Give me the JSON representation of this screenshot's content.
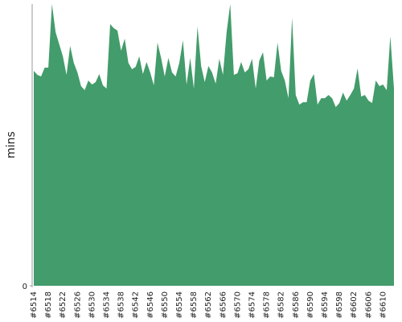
{
  "chart_data": {
    "type": "area",
    "y_label": "mins",
    "color": "#439c6b",
    "categories": [
      "#6514",
      null,
      null,
      null,
      "#6518",
      null,
      null,
      null,
      "#6522",
      null,
      null,
      null,
      "#6526",
      null,
      null,
      null,
      "#6530",
      null,
      null,
      null,
      "#6534",
      null,
      null,
      null,
      "#6538",
      null,
      null,
      null,
      "#6542",
      null,
      null,
      null,
      "#6546",
      null,
      null,
      null,
      "#6550",
      null,
      null,
      null,
      "#6554",
      null,
      null,
      null,
      "#6558",
      null,
      null,
      null,
      "#6562",
      null,
      null,
      null,
      "#6566",
      null,
      null,
      null,
      "#6570",
      null,
      null,
      null,
      "#6574",
      null,
      null,
      null,
      "#6578",
      null,
      null,
      null,
      "#6582",
      null,
      null,
      null,
      "#6586",
      null,
      null,
      null,
      "#6590",
      null,
      null,
      null,
      "#6594",
      null,
      null,
      null,
      "#6598",
      null,
      null,
      null,
      "#6602",
      null,
      null,
      null,
      "#6606",
      null,
      null,
      null,
      "#6610",
      null,
      null,
      null
    ],
    "values": [
      267,
      262,
      260,
      271,
      271,
      350,
      315,
      300,
      285,
      262,
      298,
      277,
      265,
      248,
      243,
      255,
      250,
      253,
      263,
      249,
      245,
      325,
      320,
      317,
      292,
      307,
      277,
      269,
      272,
      285,
      263,
      278,
      265,
      249,
      302,
      283,
      260,
      283,
      265,
      260,
      277,
      305,
      250,
      283,
      245,
      322,
      273,
      253,
      273,
      265,
      251,
      282,
      262,
      315,
      350,
      262,
      264,
      278,
      265,
      269,
      282,
      245,
      280,
      290,
      255,
      260,
      259,
      302,
      267,
      255,
      233,
      333,
      237,
      225,
      228,
      228,
      255,
      263,
      225,
      233,
      233,
      237,
      233,
      222,
      227,
      240,
      230,
      237,
      245,
      270,
      235,
      237,
      230,
      227,
      255,
      248,
      250,
      243,
      310,
      245
    ],
    "ylim": [
      0,
      350
    ],
    "yticks": [
      0
    ]
  }
}
